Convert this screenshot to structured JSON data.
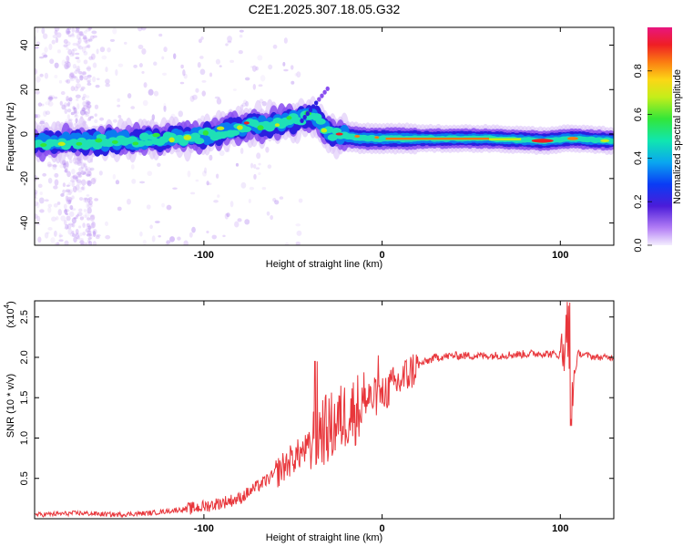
{
  "title": "C2E1.2025.307.18.05.G32",
  "chart_data": [
    {
      "type": "heatmap",
      "name": "spectrogram",
      "xlabel": "Height of straight line (km)",
      "ylabel": "Frequency (Hz)",
      "xlim": [
        -195,
        130
      ],
      "ylim": [
        -50,
        48
      ],
      "x_ticks": [
        -100,
        0,
        100
      ],
      "y_ticks": [
        -40,
        -20,
        0,
        20,
        40
      ],
      "colorbar": {
        "label": "Normalized spectral amplitude",
        "range": [
          0.0,
          1.0
        ],
        "ticks": [
          0.0,
          0.2,
          0.4,
          0.6,
          0.8
        ]
      },
      "ridge": {
        "description_points_x": [
          -195,
          -150,
          -100,
          -80,
          -60,
          -45,
          -38,
          -30,
          -20,
          -10,
          0,
          20,
          60,
          90,
          105,
          130
        ],
        "description_points_freq": [
          -4,
          -3,
          -1,
          3,
          5,
          7,
          8,
          0,
          -1,
          -2,
          -2,
          -2,
          -2,
          -3,
          -2,
          -3
        ]
      }
    },
    {
      "type": "line",
      "name": "snr",
      "xlabel": "Height of straight line (km)",
      "ylabel": "SNR (10 * v/v)",
      "y_multiplier": "(x10",
      "y_multiplier_exp": "4",
      "xlim": [
        -195,
        130
      ],
      "ylim": [
        0,
        2.7
      ],
      "x_ticks": [
        -100,
        0,
        100
      ],
      "y_ticks": [
        0.5,
        1.0,
        1.5,
        2.0,
        2.5
      ],
      "series": [
        {
          "name": "SNR",
          "color": "#e8363b",
          "x": [
            -195,
            -170,
            -150,
            -130,
            -110,
            -100,
            -90,
            -80,
            -70,
            -60,
            -50,
            -40,
            -35,
            -30,
            -25,
            -20,
            -15,
            -10,
            -5,
            0,
            10,
            20,
            30,
            40,
            60,
            80,
            90,
            100,
            104,
            106,
            110,
            120,
            130
          ],
          "values": [
            0.05,
            0.07,
            0.05,
            0.07,
            0.12,
            0.15,
            0.2,
            0.25,
            0.4,
            0.55,
            0.75,
            0.9,
            1.1,
            1.1,
            1.2,
            1.3,
            1.35,
            1.45,
            1.5,
            1.55,
            1.7,
            1.9,
            2.0,
            2.02,
            2.02,
            2.04,
            2.05,
            2.03,
            2.3,
            1.5,
            2.05,
            2.0,
            2.0
          ]
        }
      ]
    }
  ]
}
